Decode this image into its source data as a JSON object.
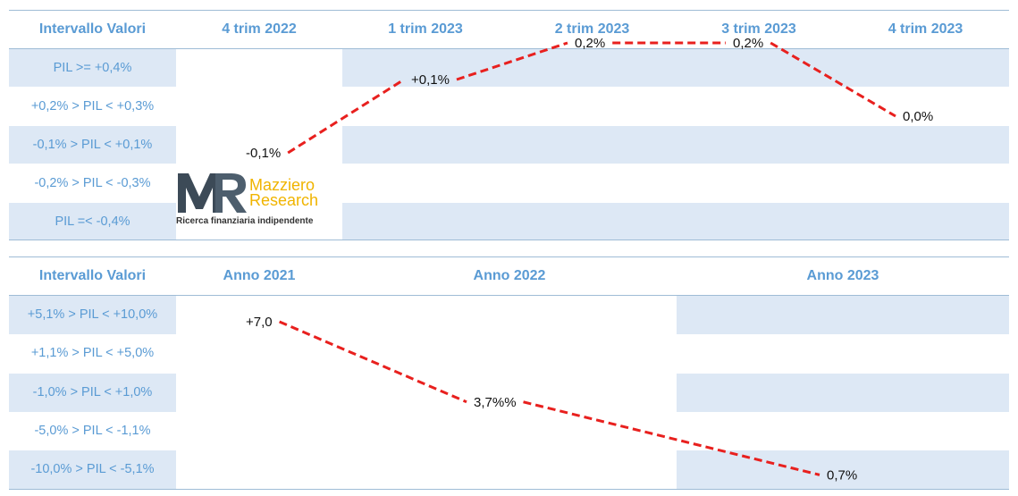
{
  "chart_data": [
    {
      "type": "table",
      "columns": [
        "Intervallo Valori",
        "4 trim 2022",
        "1 trim 2023",
        "2 trim 2023",
        "3 trim 2023",
        "4 trim 2023"
      ],
      "rows": [
        "PIL >= +0,4%",
        "+0,2% > PIL < +0,3%",
        "-0,1% > PIL < +0,1%",
        "-0,2% > PIL < -0,3%",
        "PIL =< -0,4%"
      ],
      "series": [
        {
          "x": [
            "4 trim 2022",
            "1 trim 2023",
            "2 trim 2023",
            "3 trim 2023",
            "4 trim 2023"
          ],
          "values": [
            -0.1,
            0.1,
            0.2,
            0.2,
            0.0
          ],
          "labels": [
            "-0,1%",
            "+0,1%",
            "0,2%",
            "0,2%",
            "0,0%"
          ],
          "line_color": "#e8201e",
          "line_style": "dashed"
        }
      ]
    },
    {
      "type": "table",
      "columns": [
        "Intervallo Valori",
        "Anno 2021",
        "Anno 2022",
        "Anno 2023"
      ],
      "rows": [
        "+5,1% > PIL < +10,0%",
        "+1,1% > PIL < +5,0%",
        "-1,0% > PIL < +1,0%",
        "-5,0% > PIL < -1,1%",
        "-10,0% > PIL < -5,1%"
      ],
      "series": [
        {
          "x": [
            "Anno 2021",
            "Anno 2022",
            "Anno 2023"
          ],
          "values": [
            7.0,
            3.7,
            0.7
          ],
          "labels": [
            "+7,0",
            "3,7%%",
            "0,7%"
          ],
          "line_color": "#e8201e",
          "line_style": "dashed"
        }
      ]
    }
  ],
  "logo": {
    "line1": "Mazziero",
    "line2": "Research",
    "tagline": "Ricerca finanziaria indipendente",
    "accent": "#f0b400"
  },
  "colors": {
    "header_text": "#5a9bd4",
    "band": "#dde8f5",
    "line": "#e8201e"
  }
}
